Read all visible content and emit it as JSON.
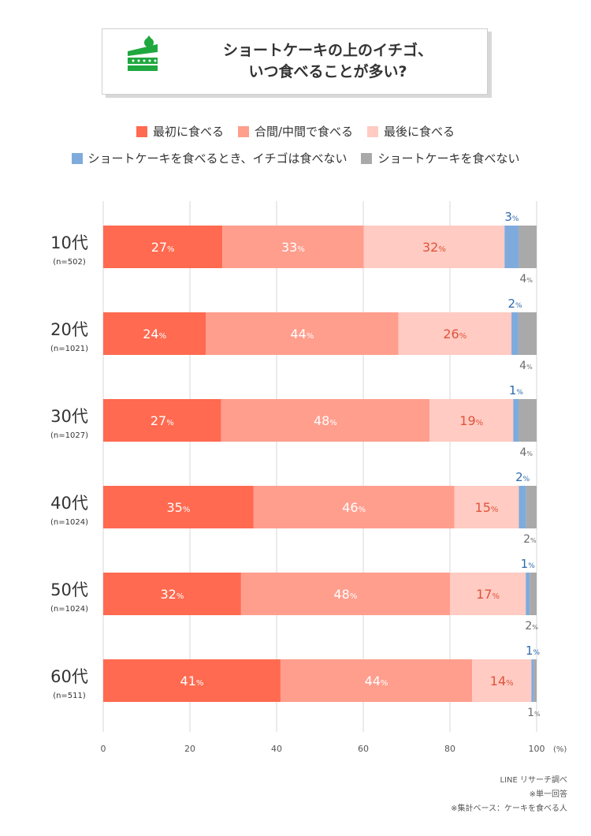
{
  "title": {
    "line1": "ショートケーキの上のイチゴ、",
    "line2": "いつ食べることが多い?"
  },
  "icon": "shortcake-icon",
  "colors": {
    "first": "#ff6a50",
    "middle": "#ff9e8d",
    "last": "#ffcbc2",
    "notStrawberry": "#7fabdc",
    "noCake": "#a9a9a9",
    "grid": "#d7d7d7",
    "blueLabel": "#2e6aad",
    "grayLabel": "#6b6b6b",
    "darkLabel": "#e0533d"
  },
  "legend": [
    {
      "key": "first",
      "label": "最初に食べる"
    },
    {
      "key": "middle",
      "label": "合間/中間で食べる"
    },
    {
      "key": "last",
      "label": "最後に食べる"
    },
    {
      "key": "notStrawberry",
      "label": "ショートケーキを食べるとき、イチゴは食べない"
    },
    {
      "key": "noCake",
      "label": "ショートケーキを食べない"
    }
  ],
  "chart_data": {
    "type": "bar",
    "orientation": "horizontal",
    "stacked": true,
    "title": "ショートケーキの上のイチゴ、いつ食べることが多い?",
    "categories": [
      "10代",
      "20代",
      "30代",
      "40代",
      "50代",
      "60代"
    ],
    "sample_sizes": [
      "(n=502)",
      "(n=1021)",
      "(n=1027)",
      "(n=1024)",
      "(n=1024)",
      "(n=511)"
    ],
    "series": [
      {
        "name": "最初に食べる",
        "key": "first",
        "values": [
          27.5,
          23.7,
          27.2,
          34.7,
          31.8,
          40.9
        ]
      },
      {
        "name": "合間/中間で食べる",
        "key": "middle",
        "values": [
          32.6,
          44.4,
          48.1,
          46.3,
          48.2,
          44.2
        ]
      },
      {
        "name": "最後に食べる",
        "key": "last",
        "values": [
          32.5,
          26.1,
          19.3,
          14.9,
          17.5,
          13.7
        ]
      },
      {
        "name": "ショートケーキを食べるとき、イチゴは食べない",
        "key": "notStrawberry",
        "values": [
          3.3,
          1.6,
          1.3,
          1.7,
          0.9,
          0.6
        ]
      },
      {
        "name": "ショートケーキを食べない",
        "key": "noCake",
        "values": [
          4.1,
          4.2,
          4.1,
          2.4,
          1.6,
          0.6
        ]
      }
    ],
    "labels": [
      [
        "27",
        "33",
        "32",
        "3",
        "4"
      ],
      [
        "24",
        "44",
        "26",
        "2",
        "4"
      ],
      [
        "27",
        "48",
        "19",
        "1",
        "4"
      ],
      [
        "35",
        "46",
        "15",
        "2",
        "2"
      ],
      [
        "32",
        "48",
        "17",
        "1",
        "2"
      ],
      [
        "41",
        "44",
        "14",
        "1",
        "1"
      ]
    ],
    "unit": "%",
    "xlim": [
      0,
      100
    ],
    "xticks": [
      "0",
      "20",
      "40",
      "60",
      "80",
      "100"
    ],
    "xunit": "(%)",
    "grid": true
  },
  "footnotes": {
    "source": "LINE リサーチ調べ",
    "note1": "※単一回答",
    "note2": "※集計ベース：ケーキを食べる人"
  }
}
